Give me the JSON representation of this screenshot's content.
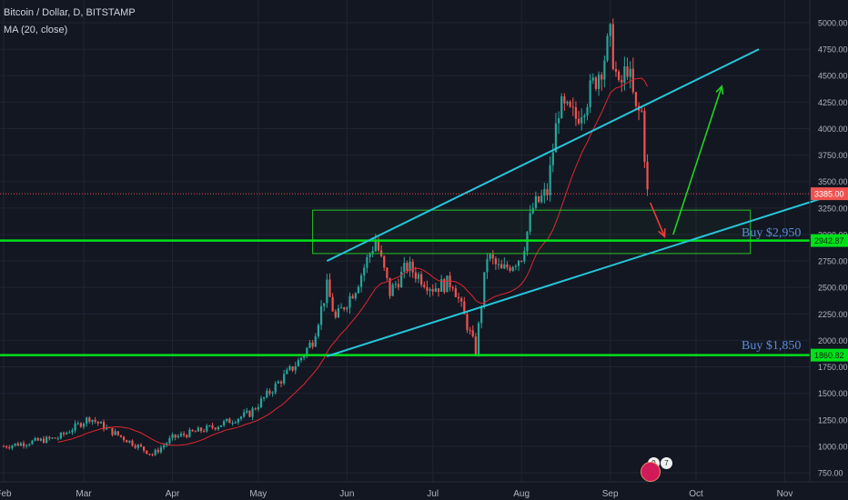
{
  "header": {
    "title": "Bitcoin / Dollar, D, BITSTAMP",
    "indicator": "MA (20, close)"
  },
  "colors": {
    "background": "#131722",
    "grid": "#1f2532",
    "candle_up": "#26a69a",
    "candle_down": "#ef5350",
    "moving_average": "#e0262f",
    "channel_lines": "#26c6da",
    "support_lines": "#00e01b",
    "box": "#27c227",
    "projection_green": "#21d321",
    "projection_red": "#f23c3c",
    "annotation_text": "#5b8bd8",
    "price_line": "#ef5350"
  },
  "chart_data": {
    "type": "candlestick",
    "title": "Bitcoin / Dollar, D, BITSTAMP",
    "indicator": "MA (20, close)",
    "x_ticks": [
      "Feb",
      "Mar",
      "Apr",
      "May",
      "Jun",
      "Jul",
      "Aug",
      "Sep",
      "Oct",
      "Nov"
    ],
    "y_ticks": [
      "5000.00",
      "4750.00",
      "4500.00",
      "4250.00",
      "4000.00",
      "3750.00",
      "3500.00",
      "3250.00",
      "3000.00",
      "2750.00",
      "2500.00",
      "2250.00",
      "2000.00",
      "1750.00",
      "1500.00",
      "1250.00",
      "1000.00",
      "750.00"
    ],
    "ylim": [
      640,
      5150
    ],
    "grid": true,
    "scale": "linear",
    "price_label": "3385.00",
    "level_labels": [
      "2942.87",
      "1860.82"
    ],
    "annotations": [
      "Buy $2,950",
      "Buy $1,850"
    ],
    "anchors": [
      {
        "date": "2017-02-01",
        "price": 1000
      },
      {
        "date": "2017-02-20",
        "price": 1080
      },
      {
        "date": "2017-03-03",
        "price": 1270
      },
      {
        "date": "2017-03-10",
        "price": 1150
      },
      {
        "date": "2017-03-20",
        "price": 1000
      },
      {
        "date": "2017-03-25",
        "price": 920
      },
      {
        "date": "2017-04-01",
        "price": 1080
      },
      {
        "date": "2017-04-15",
        "price": 1180
      },
      {
        "date": "2017-04-28",
        "price": 1310
      },
      {
        "date": "2017-05-08",
        "price": 1600
      },
      {
        "date": "2017-05-15",
        "price": 1800
      },
      {
        "date": "2017-05-20",
        "price": 2000
      },
      {
        "date": "2017-05-25",
        "price": 2500
      },
      {
        "date": "2017-05-28",
        "price": 2200
      },
      {
        "date": "2017-06-04",
        "price": 2500
      },
      {
        "date": "2017-06-11",
        "price": 2950
      },
      {
        "date": "2017-06-16",
        "price": 2450
      },
      {
        "date": "2017-06-22",
        "price": 2700
      },
      {
        "date": "2017-07-01",
        "price": 2500
      },
      {
        "date": "2017-07-08",
        "price": 2550
      },
      {
        "date": "2017-07-16",
        "price": 1900
      },
      {
        "date": "2017-07-20",
        "price": 2800
      },
      {
        "date": "2017-07-25",
        "price": 2650
      },
      {
        "date": "2017-08-01",
        "price": 2800
      },
      {
        "date": "2017-08-05",
        "price": 3250
      },
      {
        "date": "2017-08-10",
        "price": 3400
      },
      {
        "date": "2017-08-14",
        "price": 4200
      },
      {
        "date": "2017-08-20",
        "price": 4100
      },
      {
        "date": "2017-08-25",
        "price": 4350
      },
      {
        "date": "2017-08-29",
        "price": 4600
      },
      {
        "date": "2017-09-01",
        "price": 4850
      },
      {
        "date": "2017-09-04",
        "price": 4350
      },
      {
        "date": "2017-09-07",
        "price": 4600
      },
      {
        "date": "2017-09-10",
        "price": 4150
      },
      {
        "date": "2017-09-12",
        "price": 4150
      },
      {
        "date": "2017-09-14",
        "price": 3385
      }
    ],
    "trendlines": [
      {
        "name": "upper-channel",
        "from": {
          "date": "2017-05-25",
          "price": 2750
        },
        "to": {
          "date": "2017-10-23",
          "price": 4750
        }
      },
      {
        "name": "lower-channel",
        "from": {
          "date": "2017-05-25",
          "price": 1850
        },
        "to": {
          "date": "2017-11-15",
          "price": 3350
        }
      }
    ],
    "levels": [
      {
        "label": "2942.87",
        "price": 2942.87
      },
      {
        "label": "1860.82",
        "price": 1860.82
      }
    ],
    "zone": {
      "from_date": "2017-05-20",
      "to_date": "2017-10-20",
      "high": 3230,
      "low": 2820
    },
    "projections": [
      {
        "name": "drop",
        "from": {
          "date": "2017-09-15",
          "price": 3300
        },
        "to": {
          "date": "2017-09-20",
          "price": 2980
        }
      },
      {
        "name": "rally",
        "from": {
          "date": "2017-09-23",
          "price": 3000
        },
        "to": {
          "date": "2017-10-10",
          "price": 4400
        }
      }
    ]
  }
}
